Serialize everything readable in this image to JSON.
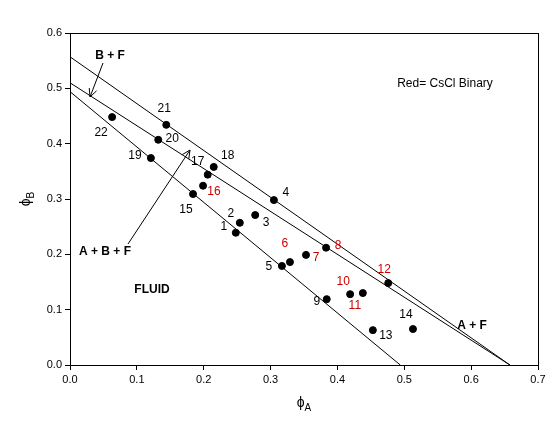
{
  "chart_data": {
    "type": "scatter",
    "x_label": "ϕA",
    "y_label": "ϕB",
    "xlim": [
      0,
      0.7
    ],
    "ylim": [
      0,
      0.6
    ],
    "xticks": [
      {
        "value": 0,
        "label": "0.0"
      },
      0.1,
      0.2,
      0.3,
      0.4,
      0.5,
      0.6,
      0.7
    ],
    "yticks": [
      {
        "value": 0,
        "label": "0.0"
      },
      0.1,
      0.2,
      0.3,
      0.4,
      0.5,
      0.6
    ],
    "grid": false,
    "points": {
      "labels": [
        "1",
        "2",
        "3",
        "4",
        "5",
        "6",
        "7",
        "8",
        "9",
        "10",
        "11",
        "12",
        "13",
        "14",
        "15",
        "16",
        "17",
        "18",
        "19",
        "20",
        "21",
        "22"
      ],
      "x": [
        0.248,
        0.254,
        0.277,
        0.305,
        0.317,
        0.329,
        0.353,
        0.383,
        0.384,
        0.419,
        0.438,
        0.476,
        0.453,
        0.513,
        0.184,
        0.199,
        0.206,
        0.215,
        0.121,
        0.132,
        0.144,
        0.063
      ],
      "y": [
        0.239,
        0.257,
        0.271,
        0.298,
        0.179,
        0.186,
        0.199,
        0.212,
        0.119,
        0.128,
        0.13,
        0.148,
        0.063,
        0.065,
        0.309,
        0.324,
        0.344,
        0.358,
        0.374,
        0.407,
        0.434,
        0.448
      ],
      "label_colors": [
        "#000000",
        "#000000",
        "#000000",
        "#000000",
        "#000000",
        "#cc0000",
        "#cc0000",
        "#cc0000",
        "#000000",
        "#cc0000",
        "#cc0000",
        "#cc0000",
        "#000000",
        "#000000",
        "#000000",
        "#cc0000",
        "#000000",
        "#000000",
        "#000000",
        "#000000",
        "#000000",
        "#000000"
      ],
      "color": "#000000",
      "marker": "circle"
    },
    "lines": [
      {
        "x": [
          0,
          0.658
        ],
        "y": [
          0.557,
          0
        ],
        "color": "#000000",
        "line_style": "solid"
      },
      {
        "x": [
          0,
          0.658
        ],
        "y": [
          0.51,
          0
        ],
        "color": "#000000",
        "line_style": "solid"
      },
      {
        "x": [
          0,
          0.494
        ],
        "y": [
          0.494,
          0
        ],
        "color": "#000000",
        "line_style": "solid"
      }
    ],
    "annotations": [
      "B + F",
      "A + B + F",
      "FLUID",
      "A + F",
      "Red= CsCl Binary"
    ]
  }
}
